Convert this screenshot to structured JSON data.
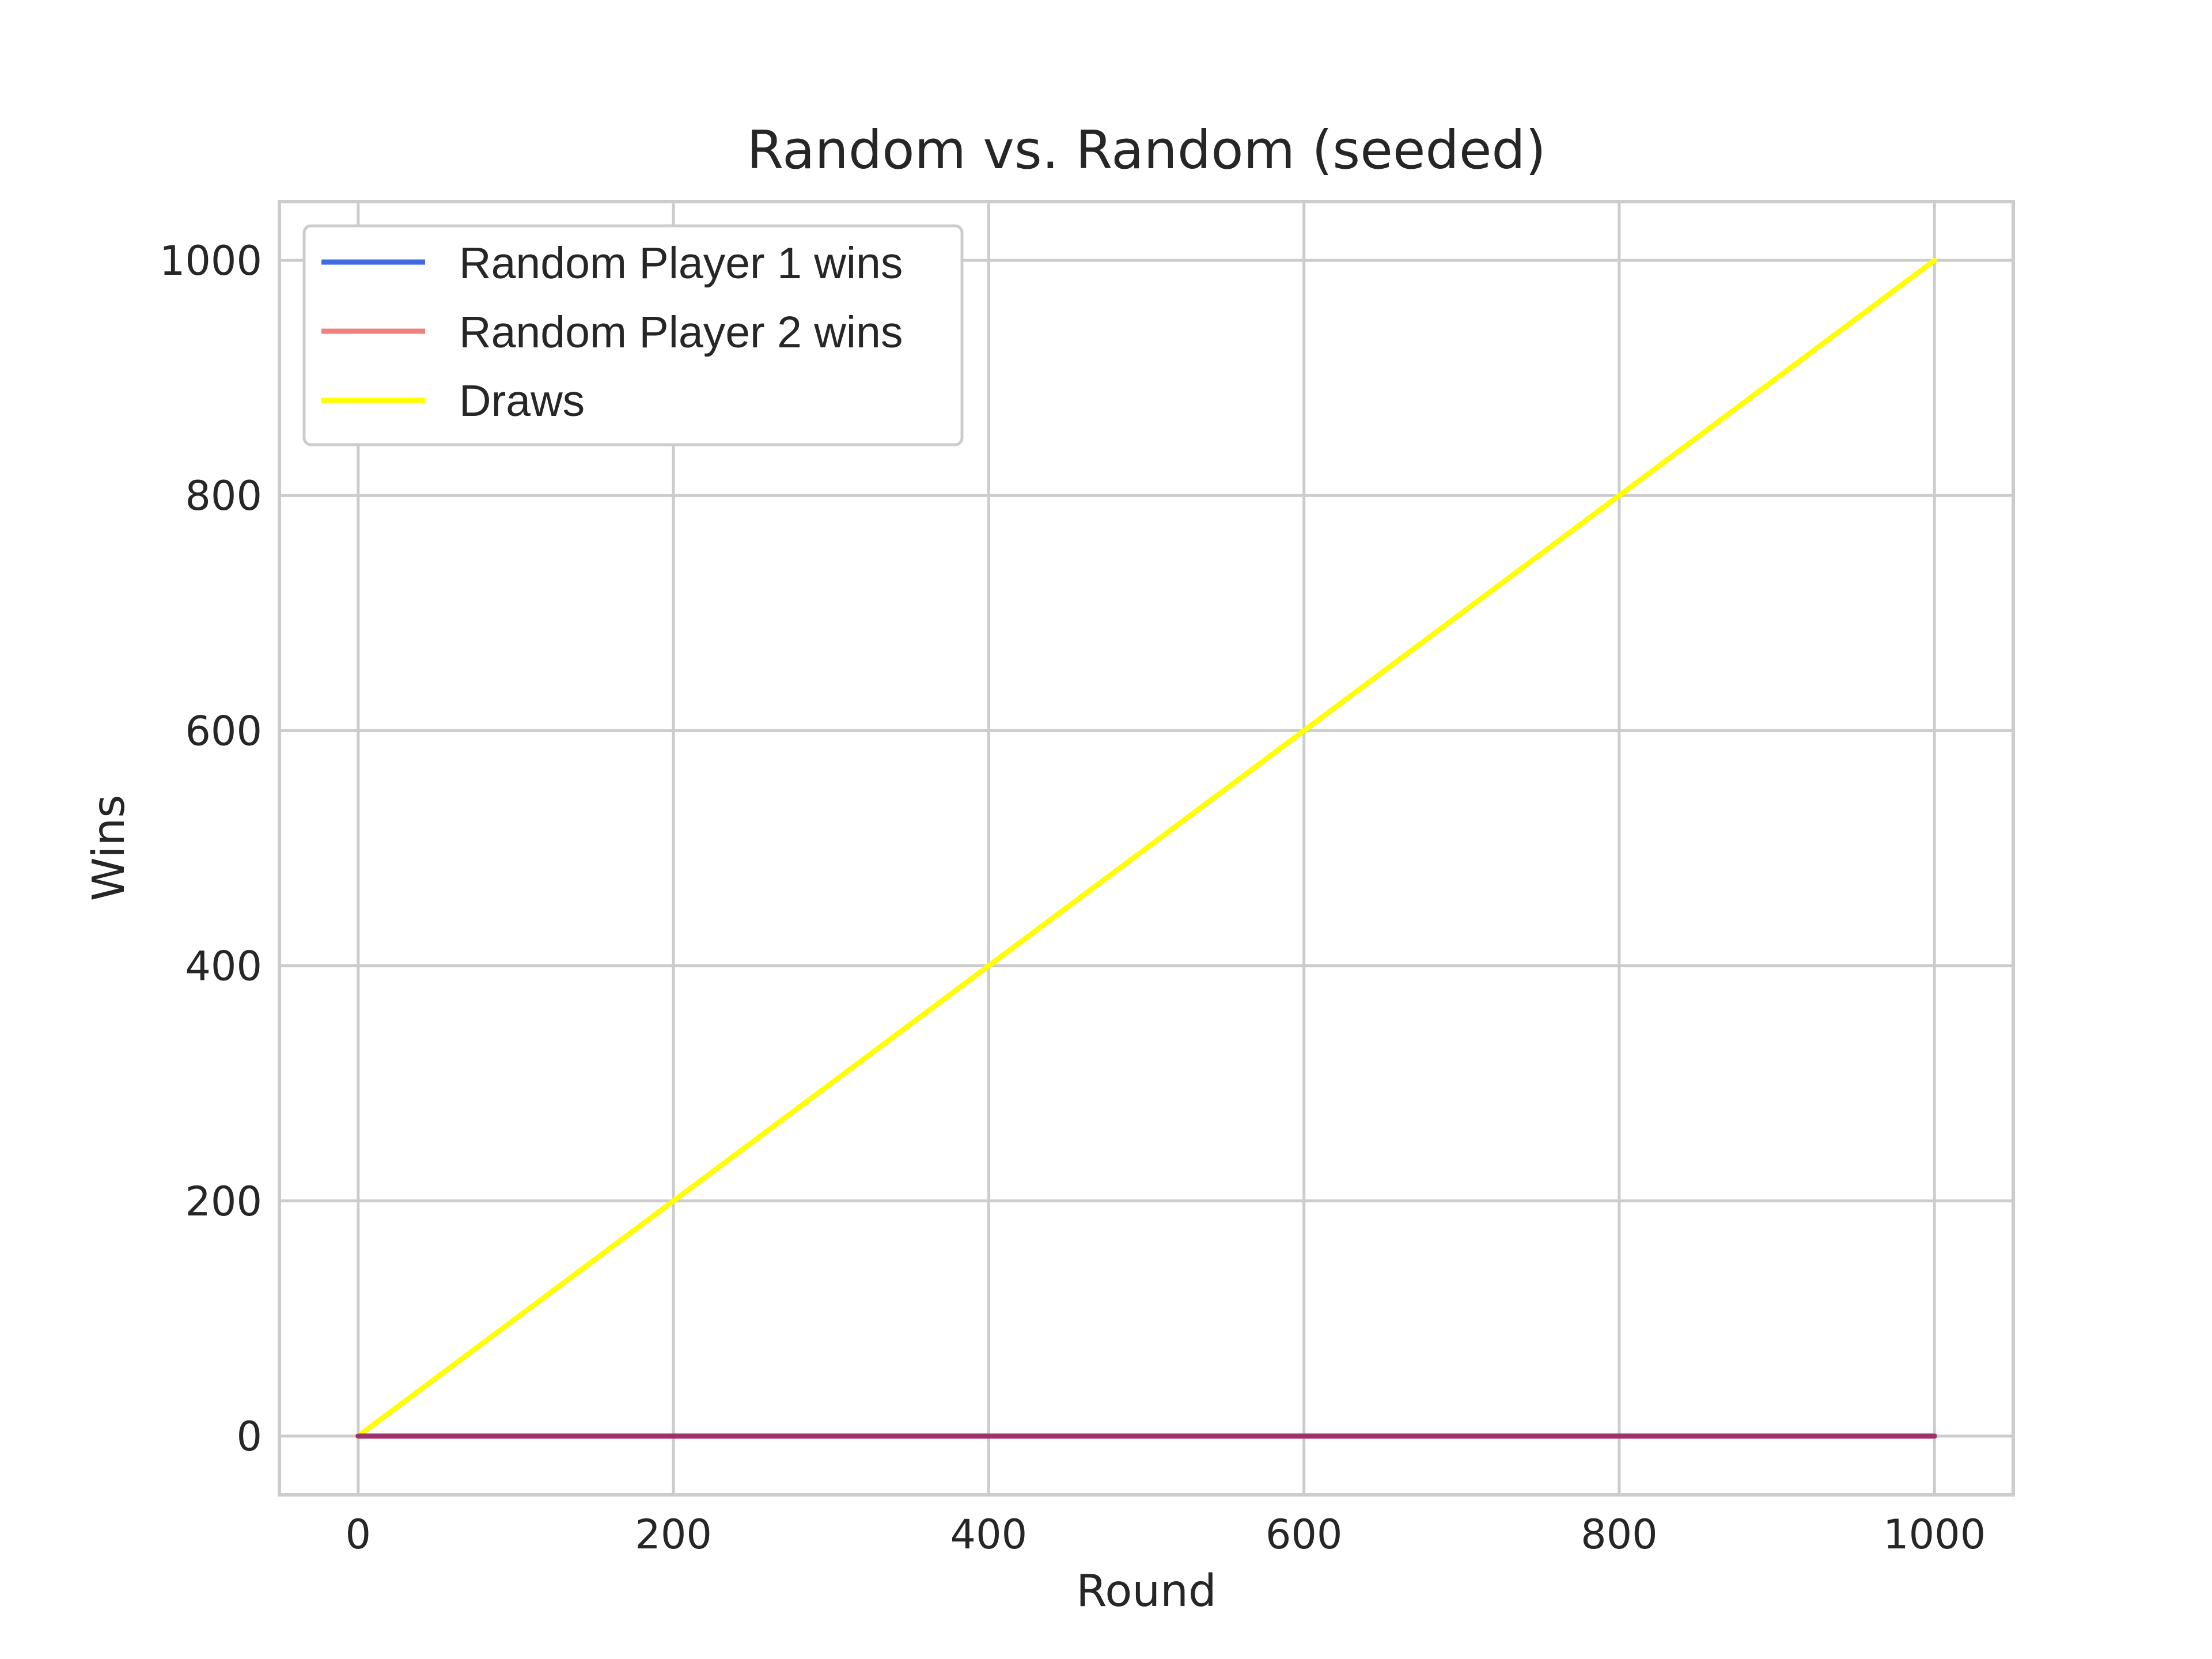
{
  "chart_data": {
    "type": "line",
    "title": "Random vs. Random (seeded)",
    "xlabel": "Round",
    "ylabel": "Wins",
    "xlim": [
      -50,
      1050
    ],
    "ylim": [
      -50,
      1050
    ],
    "xticks": [
      0,
      200,
      400,
      600,
      800,
      1000
    ],
    "yticks": [
      0,
      200,
      400,
      600,
      800,
      1000
    ],
    "xtick_labels": [
      "0",
      "200",
      "400",
      "600",
      "800",
      "1000"
    ],
    "ytick_labels": [
      "0",
      "200",
      "400",
      "600",
      "800",
      "1000"
    ],
    "grid": true,
    "legend_position": "upper left",
    "series": [
      {
        "name": "Random Player 1 wins",
        "color": "#4169e1",
        "x": [
          0,
          1000
        ],
        "y": [
          0,
          0
        ]
      },
      {
        "name": "Random Player 2 wins",
        "color": "#f08080",
        "x": [
          0,
          1000
        ],
        "y": [
          0,
          0
        ]
      },
      {
        "name": "Draws",
        "color": "#ffff00",
        "x": [
          0,
          1000
        ],
        "y": [
          0,
          1000
        ]
      }
    ],
    "overlap_color": "#a0306c"
  }
}
